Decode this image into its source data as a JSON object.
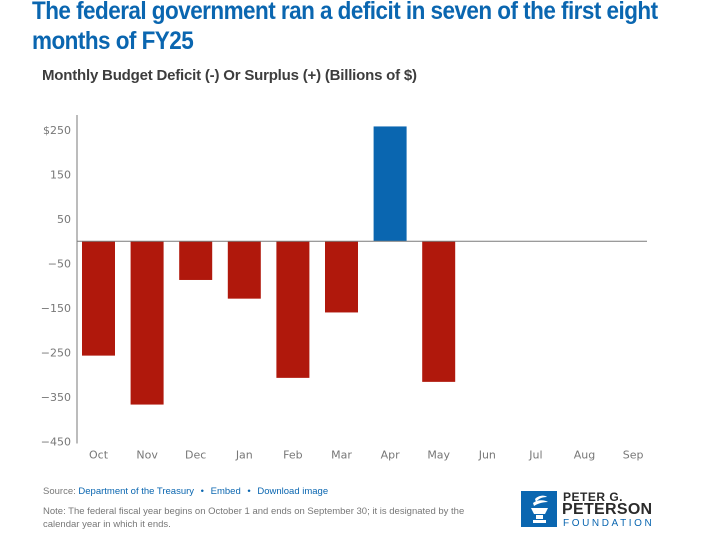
{
  "header": {
    "title": "The federal government ran a deficit in seven of the first eight months of FY25",
    "subtitle": "Monthly Budget Deficit (-) Or Surplus (+) (Billions of $)"
  },
  "chart_data": {
    "type": "bar",
    "title": "The federal government ran a deficit in seven of the first eight months of FY25",
    "subtitle": "Monthly Budget Deficit (-) Or Surplus (+) (Billions of $)",
    "xlabel": "",
    "ylabel": "Billions of $",
    "categories": [
      "Oct",
      "Nov",
      "Dec",
      "Jan",
      "Feb",
      "Mar",
      "Apr",
      "May",
      "Jun",
      "Jul",
      "Aug",
      "Sep"
    ],
    "values": [
      -257,
      -367,
      -87,
      -129,
      -307,
      -160,
      258,
      -316,
      null,
      null,
      null,
      null
    ],
    "ylim": [
      -450,
      250
    ],
    "yticks": [
      250,
      150,
      50,
      -50,
      -150,
      -250,
      -350,
      -450
    ],
    "ytick_labels": [
      "$250",
      "150",
      "50",
      "-50",
      "-150",
      "-250",
      "-350",
      "-450"
    ],
    "grid": false,
    "colors": {
      "deficit": "#b0180c",
      "surplus": "#0a66b0"
    }
  },
  "footer": {
    "source_label": "Source:",
    "source_link": "Department of the Treasury",
    "separator": "•",
    "embed_link": "Embed",
    "download_link": "Download image",
    "note": "Note: The federal fiscal year begins on October 1 and ends on September 30; it is designated by the calendar year in which it ends."
  },
  "logo": {
    "line1": "PETER G.",
    "line2": "PETERSON",
    "line3": "FOUNDATION"
  }
}
